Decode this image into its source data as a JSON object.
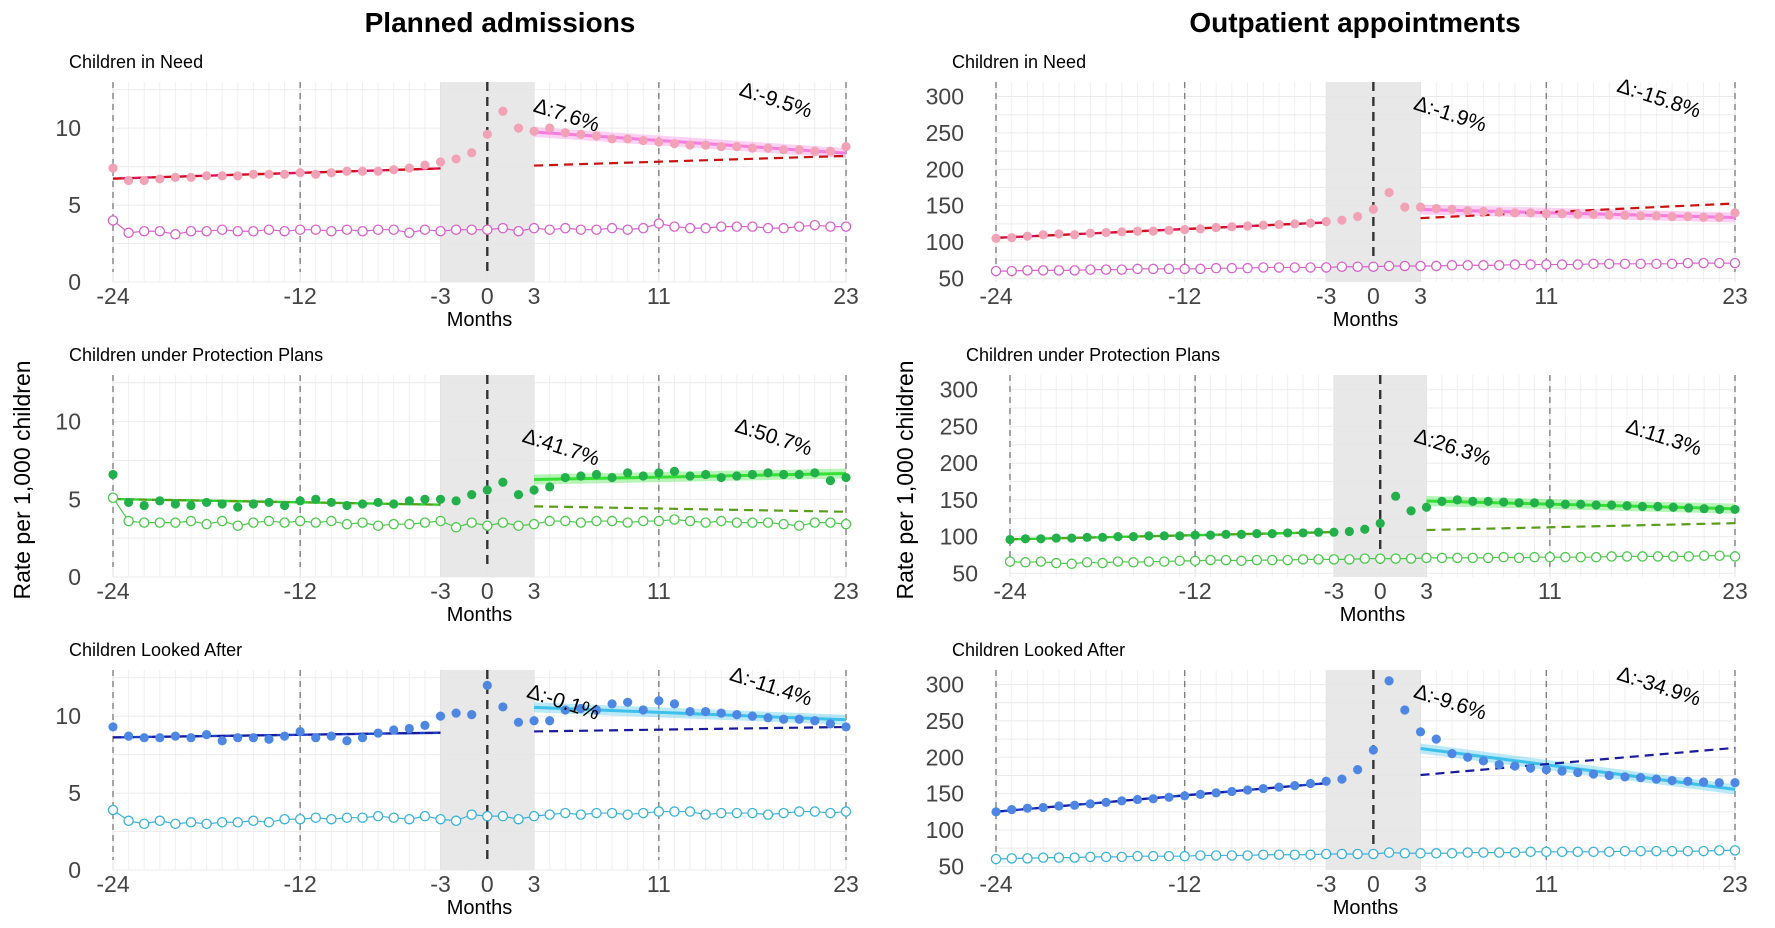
{
  "figure": {
    "column_titles": [
      "Planned admissions",
      "Outpatient appointments"
    ],
    "ylabel": "Rate per 1,000 children",
    "xlabel": "Months"
  },
  "colors": {
    "cin_dot": "#f2a2b6",
    "cin_fit": "#e0105e",
    "cin_post": "#f77ce0",
    "cin_counter": "#cc1111",
    "cin_control": "#d862cc",
    "cpp_dot": "#22b04a",
    "cpp_fit": "#2fd42f",
    "cpp_post": "#33e033",
    "cpp_counter": "#5a9e1a",
    "cpp_control": "#4cc94c",
    "cla_dot": "#4d86e3",
    "cla_fit": "#1d3fc9",
    "cla_post": "#3dc0ea",
    "cla_counter": "#1a1a9e",
    "cla_control": "#3bb2d8",
    "washout": "#e6e6e6",
    "grid": "#ebebeb"
  },
  "chart_data": [
    {
      "type": "scatter",
      "column": "Planned admissions",
      "title": "Children in Need",
      "xlabel": "Months",
      "ylabel": "",
      "xlim": [
        -24,
        23
      ],
      "ylim": [
        0,
        13
      ],
      "x_ticks": [
        -24,
        -12,
        -3,
        0,
        3,
        11,
        23
      ],
      "y_ticks": [
        0,
        5,
        10
      ],
      "washout": [
        -3,
        3
      ],
      "series": [
        {
          "values": [
            7.4,
            6.6,
            6.6,
            6.7,
            6.8,
            6.8,
            6.9,
            6.9,
            6.9,
            7.0,
            7.0,
            7.0,
            7.1,
            7.0,
            7.1,
            7.2,
            7.2,
            7.2,
            7.3,
            7.4,
            7.6,
            7.8,
            8.0,
            8.4,
            9.6,
            11.1,
            10.0,
            9.8,
            10.0,
            9.7,
            9.6,
            9.5,
            9.3,
            9.3,
            9.2,
            9.1,
            9.0,
            8.9,
            8.9,
            8.8,
            8.8,
            8.7,
            8.7,
            8.6,
            8.6,
            8.5,
            8.5,
            8.8
          ]
        },
        {
          "values": [
            4.0,
            3.2,
            3.3,
            3.3,
            3.1,
            3.3,
            3.3,
            3.4,
            3.3,
            3.3,
            3.4,
            3.3,
            3.4,
            3.4,
            3.3,
            3.4,
            3.3,
            3.4,
            3.4,
            3.2,
            3.4,
            3.3,
            3.4,
            3.4,
            3.4,
            3.5,
            3.3,
            3.5,
            3.4,
            3.5,
            3.4,
            3.4,
            3.5,
            3.4,
            3.5,
            3.8,
            3.6,
            3.5,
            3.5,
            3.6,
            3.6,
            3.6,
            3.5,
            3.5,
            3.6,
            3.7,
            3.6,
            3.6
          ]
        }
      ],
      "annotations": [
        "Δ:7.6%",
        "Δ:-9.5%"
      ]
    },
    {
      "type": "scatter",
      "column": "Planned admissions",
      "title": "Children under Protection Plans",
      "xlabel": "Months",
      "ylabel": "Rate per 1,000 children",
      "xlim": [
        -24,
        23
      ],
      "ylim": [
        0,
        13
      ],
      "x_ticks": [
        -24,
        -12,
        -3,
        0,
        3,
        11,
        23
      ],
      "y_ticks": [
        0,
        5,
        10
      ],
      "washout": [
        -3,
        3
      ],
      "series": [
        {
          "values": [
            6.6,
            4.8,
            4.6,
            4.9,
            4.7,
            4.6,
            4.8,
            4.7,
            4.5,
            4.7,
            4.8,
            4.6,
            4.9,
            5.0,
            4.8,
            4.6,
            4.7,
            4.8,
            4.7,
            4.9,
            5.0,
            5.0,
            4.9,
            5.3,
            5.6,
            6.1,
            5.3,
            5.6,
            5.8,
            6.4,
            6.5,
            6.6,
            6.4,
            6.7,
            6.5,
            6.7,
            6.8,
            6.5,
            6.6,
            6.4,
            6.5,
            6.6,
            6.7,
            6.6,
            6.6,
            6.7,
            6.2,
            6.4
          ]
        },
        {
          "values": [
            5.1,
            3.6,
            3.5,
            3.5,
            3.5,
            3.6,
            3.4,
            3.6,
            3.3,
            3.5,
            3.6,
            3.5,
            3.6,
            3.5,
            3.6,
            3.4,
            3.5,
            3.3,
            3.4,
            3.4,
            3.5,
            3.6,
            3.2,
            3.5,
            3.3,
            3.5,
            3.3,
            3.4,
            3.6,
            3.6,
            3.5,
            3.6,
            3.6,
            3.5,
            3.6,
            3.6,
            3.7,
            3.6,
            3.5,
            3.6,
            3.5,
            3.5,
            3.5,
            3.4,
            3.3,
            3.5,
            3.5,
            3.4
          ]
        }
      ],
      "annotations": [
        "Δ:41.7%",
        "Δ:50.7%"
      ]
    },
    {
      "type": "scatter",
      "column": "Planned admissions",
      "title": "Children Looked After",
      "xlabel": "Months",
      "ylabel": "",
      "xlim": [
        -24,
        23
      ],
      "ylim": [
        0,
        13
      ],
      "x_ticks": [
        -24,
        -12,
        -3,
        0,
        3,
        11,
        23
      ],
      "y_ticks": [
        0,
        5,
        10
      ],
      "washout": [
        -3,
        3
      ],
      "series": [
        {
          "values": [
            9.3,
            8.7,
            8.6,
            8.6,
            8.7,
            8.6,
            8.8,
            8.4,
            8.6,
            8.6,
            8.5,
            8.7,
            9.0,
            8.6,
            8.7,
            8.4,
            8.6,
            8.9,
            9.1,
            9.2,
            9.4,
            10.0,
            10.2,
            10.1,
            12.0,
            10.6,
            9.6,
            9.7,
            9.7,
            10.4,
            10.5,
            10.4,
            10.8,
            10.9,
            10.4,
            11.0,
            10.8,
            10.3,
            10.3,
            10.2,
            10.1,
            10.0,
            9.9,
            9.8,
            9.8,
            9.7,
            9.5,
            9.3
          ]
        },
        {
          "values": [
            3.9,
            3.2,
            3.0,
            3.2,
            3.0,
            3.1,
            3.0,
            3.1,
            3.1,
            3.2,
            3.1,
            3.3,
            3.3,
            3.4,
            3.3,
            3.4,
            3.4,
            3.5,
            3.4,
            3.3,
            3.5,
            3.3,
            3.2,
            3.6,
            3.5,
            3.5,
            3.3,
            3.5,
            3.6,
            3.7,
            3.6,
            3.7,
            3.7,
            3.6,
            3.7,
            3.8,
            3.8,
            3.8,
            3.6,
            3.7,
            3.7,
            3.7,
            3.6,
            3.7,
            3.8,
            3.8,
            3.7,
            3.8
          ]
        }
      ],
      "annotations": [
        "Δ:-0.1%",
        "Δ:-11.4%"
      ]
    },
    {
      "type": "scatter",
      "column": "Outpatient appointments",
      "title": "Children in Need",
      "xlabel": "Months",
      "ylabel": "",
      "xlim": [
        -24,
        23
      ],
      "ylim": [
        45,
        320
      ],
      "x_ticks": [
        -24,
        -12,
        -3,
        0,
        3,
        11,
        23
      ],
      "y_ticks": [
        50,
        100,
        150,
        200,
        250,
        300
      ],
      "washout": [
        -3,
        3
      ],
      "series": [
        {
          "values": [
            105,
            106,
            108,
            110,
            111,
            110,
            112,
            113,
            114,
            115,
            115,
            116,
            117,
            118,
            120,
            121,
            122,
            123,
            124,
            125,
            126,
            128,
            130,
            135,
            145,
            168,
            148,
            148,
            146,
            145,
            143,
            142,
            141,
            140,
            140,
            139,
            139,
            138,
            138,
            137,
            137,
            136,
            136,
            135,
            135,
            134,
            134,
            140
          ]
        },
        {
          "values": [
            60,
            60,
            61,
            61,
            61,
            61,
            62,
            62,
            62,
            63,
            63,
            63,
            63,
            63,
            64,
            64,
            64,
            65,
            65,
            65,
            65,
            65,
            66,
            66,
            66,
            67,
            67,
            67,
            67,
            68,
            68,
            68,
            68,
            69,
            69,
            69,
            69,
            69,
            70,
            70,
            70,
            70,
            70,
            70,
            71,
            71,
            71,
            71
          ]
        }
      ],
      "annotations": [
        "Δ:-1.9%",
        "Δ:-15.8%"
      ]
    },
    {
      "type": "scatter",
      "column": "Outpatient appointments",
      "title": "Children under Protection Plans",
      "xlabel": "Months",
      "ylabel": "Rate per 1,000 children",
      "xlim": [
        -24,
        23
      ],
      "ylim": [
        45,
        320
      ],
      "x_ticks": [
        -24,
        -12,
        -3,
        0,
        3,
        11,
        23
      ],
      "y_ticks": [
        50,
        100,
        150,
        200,
        250,
        300
      ],
      "washout": [
        -3,
        3
      ],
      "series": [
        {
          "values": [
            96,
            97,
            97,
            98,
            98,
            99,
            99,
            100,
            100,
            101,
            101,
            101,
            102,
            102,
            103,
            103,
            104,
            104,
            105,
            105,
            106,
            106,
            107,
            110,
            118,
            155,
            135,
            140,
            148,
            150,
            148,
            148,
            147,
            146,
            146,
            145,
            144,
            144,
            143,
            143,
            142,
            141,
            141,
            140,
            139,
            138,
            137,
            137
          ]
        },
        {
          "values": [
            66,
            65,
            66,
            64,
            63,
            65,
            64,
            66,
            65,
            66,
            66,
            67,
            67,
            68,
            68,
            67,
            68,
            68,
            68,
            69,
            69,
            69,
            69,
            70,
            70,
            70,
            70,
            71,
            71,
            71,
            71,
            71,
            72,
            71,
            72,
            72,
            72,
            72,
            72,
            73,
            73,
            73,
            73,
            73,
            73,
            74,
            74,
            73
          ]
        }
      ],
      "annotations": [
        "Δ:26.3%",
        "Δ:11.3%"
      ]
    },
    {
      "type": "scatter",
      "column": "Outpatient appointments",
      "title": "Children Looked After",
      "xlabel": "Months",
      "ylabel": "",
      "xlim": [
        -24,
        23
      ],
      "ylim": [
        45,
        320
      ],
      "x_ticks": [
        -24,
        -12,
        -3,
        0,
        3,
        11,
        23
      ],
      "y_ticks": [
        50,
        100,
        150,
        200,
        250,
        300
      ],
      "washout": [
        -3,
        3
      ],
      "series": [
        {
          "values": [
            125,
            128,
            130,
            131,
            133,
            134,
            136,
            138,
            140,
            142,
            143,
            145,
            147,
            149,
            151,
            153,
            155,
            157,
            159,
            161,
            164,
            167,
            170,
            183,
            210,
            305,
            265,
            235,
            225,
            205,
            200,
            195,
            190,
            188,
            185,
            183,
            181,
            179,
            177,
            175,
            173,
            172,
            170,
            168,
            167,
            166,
            165,
            165
          ]
        },
        {
          "values": [
            60,
            61,
            61,
            62,
            62,
            62,
            63,
            63,
            63,
            64,
            64,
            64,
            64,
            65,
            65,
            65,
            65,
            66,
            66,
            66,
            66,
            67,
            67,
            67,
            67,
            69,
            68,
            68,
            68,
            68,
            69,
            69,
            69,
            69,
            70,
            70,
            70,
            70,
            70,
            70,
            71,
            71,
            71,
            71,
            71,
            71,
            72,
            72
          ]
        }
      ],
      "annotations": [
        "Δ:-9.6%",
        "Δ:-34.9%"
      ]
    }
  ]
}
